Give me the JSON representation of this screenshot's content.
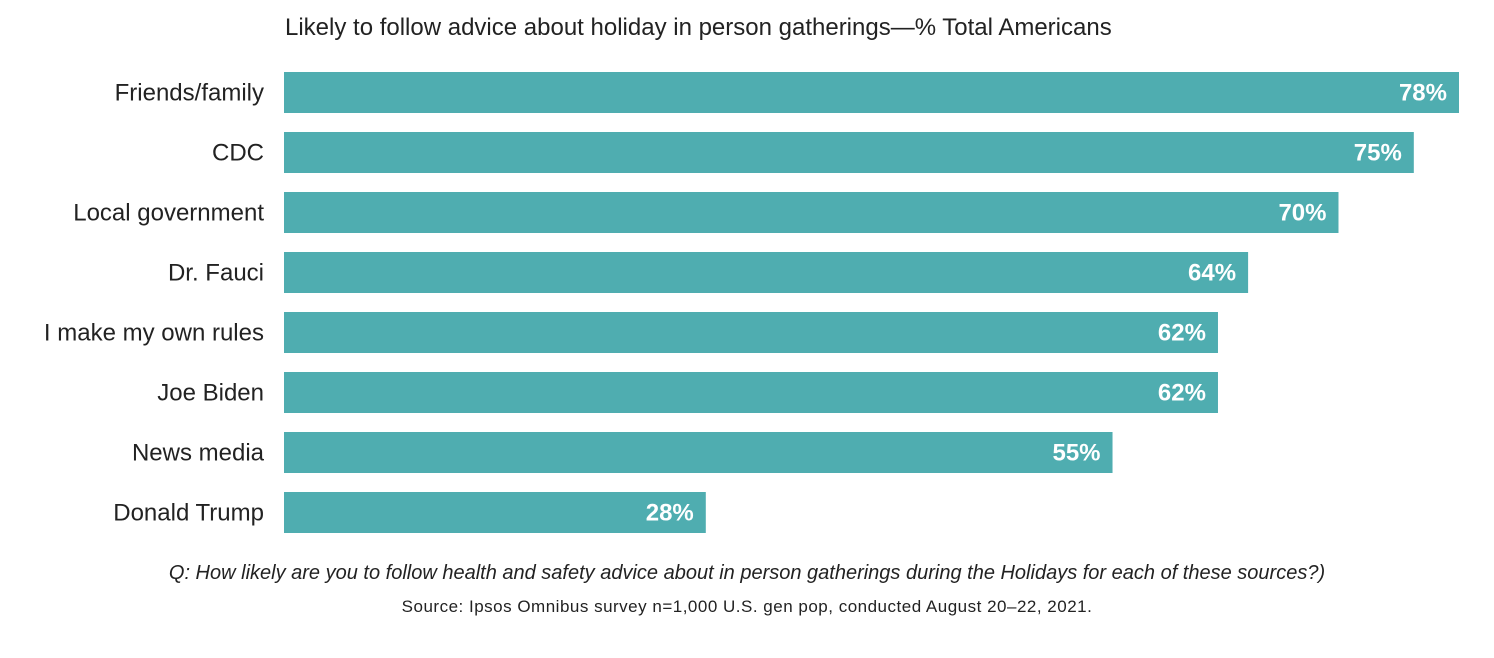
{
  "chart_data": {
    "type": "bar",
    "orientation": "horizontal",
    "title": "Likely to follow advice about holiday in person gatherings—% Total Americans",
    "categories": [
      "Friends/family",
      "CDC",
      "Local government",
      "Dr. Fauci",
      "I make my own rules",
      "Joe Biden",
      "News media",
      "Donald Trump"
    ],
    "values": [
      78,
      75,
      70,
      64,
      62,
      62,
      55,
      28
    ],
    "value_labels": [
      "78%",
      "75%",
      "70%",
      "64%",
      "62%",
      "62%",
      "55%",
      "28%"
    ],
    "xlim": [
      0,
      78
    ],
    "xlabel": "",
    "ylabel": "",
    "grid": false,
    "bar_color": "#4fadb0",
    "label_color": "#ffffff"
  },
  "footer": {
    "question": "Q: How likely are you to follow health and safety advice about in person gatherings during the Holidays for each of these sources?)",
    "source": "Source: Ipsos Omnibus survey n=1,000 U.S. gen pop, conducted August 20–22, 2021."
  }
}
